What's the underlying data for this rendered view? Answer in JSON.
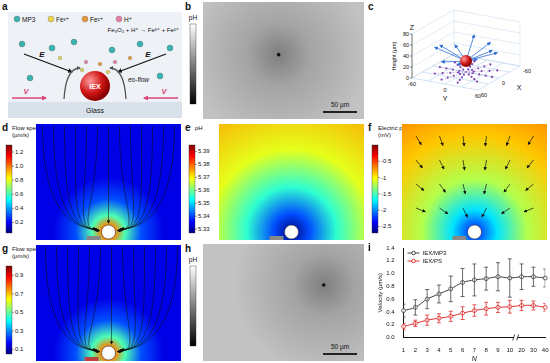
{
  "panels": {
    "a": {
      "label": "a",
      "legend": [
        {
          "name": "MP3",
          "color": "#3bb3b0"
        },
        {
          "name": "Fe³⁺",
          "color": "#e8d44d"
        },
        {
          "name": "Fe²⁺",
          "color": "#e8963a"
        },
        {
          "name": "H⁺",
          "color": "#e87fa8"
        }
      ],
      "equation": "Fe₃O₄ + H⁺ → Fe³⁺ + Fe²⁺",
      "particle": "IEX",
      "field": "E",
      "flow": "eo-flow",
      "velocity": "V",
      "substrate": "Glass"
    },
    "b": {
      "label": "b",
      "colorbar_title": "pH",
      "scale_bar": "50 μm"
    },
    "c": {
      "label": "c",
      "axes": {
        "x": "X",
        "y": "Y",
        "z": "Z"
      },
      "z_title": "Height (μm)",
      "z_ticks": [
        0,
        20,
        40,
        60,
        80
      ],
      "x_ticks": [
        -60,
        0,
        60
      ],
      "y_ticks": [
        -60,
        0,
        60
      ]
    },
    "d": {
      "label": "d",
      "colorbar": {
        "title": "Flow speed (μm/s)",
        "range": [
          0.05,
          1.3
        ],
        "ticks": [
          1.2,
          {
            "value": 1,
            "label": "1.0"
          },
          0.8,
          0.6,
          0.4,
          0.2
        ]
      }
    },
    "e": {
      "label": "e",
      "colorbar": {
        "title": "pH",
        "range": [
          5.327,
          5.395
        ],
        "ticks": [
          5.39,
          5.38,
          5.37,
          5.36,
          5.35,
          5.34,
          5.33
        ]
      }
    },
    "f": {
      "label": "f",
      "colorbar": {
        "title": "Electric potential (mV)",
        "range": [
          -2.7,
          0
        ],
        "ticks": [
          -0.5,
          -1,
          -1.5,
          -2,
          -2.5
        ]
      }
    },
    "g": {
      "label": "g",
      "colorbar": {
        "title": "Flow speed (μm/s)",
        "range": [
          0.05,
          1.0
        ],
        "ticks": [
          0.9,
          0.7,
          0.5,
          0.3,
          0.1
        ]
      }
    },
    "h": {
      "label": "h",
      "colorbar_title": "pH",
      "scale_bar": "50 μm"
    },
    "i": {
      "label": "i"
    }
  },
  "chart_data": {
    "type": "line",
    "x_label": "N",
    "y_label": "Velocity (μm/s)",
    "categories": [
      "1",
      "2",
      "3",
      "4",
      "5",
      "6",
      "7",
      "8",
      "9",
      "10",
      "20",
      "30",
      "40"
    ],
    "ylim": [
      0,
      1.4
    ],
    "yticks": [
      {
        "value": 0,
        "label": "0.0"
      },
      0.2,
      0.4,
      0.6,
      0.8,
      {
        "value": 1,
        "label": "1.0"
      },
      1.2,
      1.4
    ],
    "grid": false,
    "legend": "upper left",
    "series": [
      {
        "name": "IEX/MP3",
        "color": "#444444",
        "marker": "circle",
        "line_style": "solid",
        "values": [
          0.42,
          0.47,
          0.6,
          0.68,
          0.76,
          0.86,
          0.9,
          0.92,
          0.95,
          0.93,
          0.95,
          0.95,
          0.93
        ],
        "errors": [
          0.1,
          0.12,
          0.15,
          0.14,
          0.2,
          0.22,
          0.25,
          0.18,
          0.22,
          0.3,
          0.2,
          0.15,
          0.14
        ]
      },
      {
        "name": "IEX/PS",
        "color": "#e03030",
        "marker": "circle",
        "line_style": "solid",
        "values": [
          0.17,
          0.22,
          0.27,
          0.3,
          0.33,
          0.38,
          0.42,
          0.45,
          0.47,
          0.48,
          0.5,
          0.5,
          0.47
        ],
        "errors": [
          0.05,
          0.05,
          0.08,
          0.07,
          0.08,
          0.1,
          0.09,
          0.1,
          0.08,
          0.1,
          0.08,
          0.07,
          0.06
        ]
      }
    ]
  }
}
